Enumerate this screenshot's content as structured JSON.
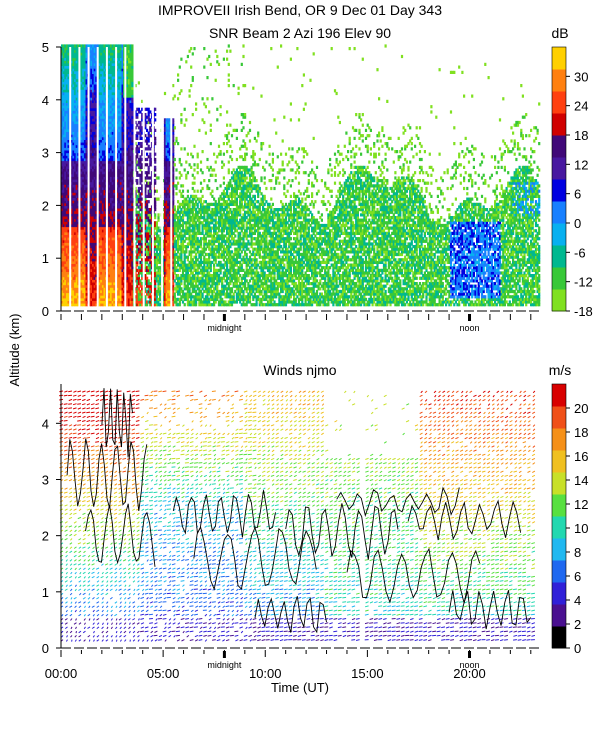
{
  "figure": {
    "title_line1": "IMPROVEII  Irish Bend, OR   9 Dec 01 Day 343",
    "title_line2": "SNR Beam 2 Azi 196 Elev 90",
    "shared_ylabel": "Altitude (km)",
    "shared_xlabel": "Time (UT)",
    "markers": [
      {
        "label": "midnight",
        "hour": 8.0
      },
      {
        "label": "noon",
        "hour": 20.0
      }
    ]
  },
  "chart_data": [
    {
      "id": "snr",
      "type": "heatmap",
      "title": "SNR Beam 2 Azi 196 Elev 90",
      "variable": "SNR",
      "ylabel": "Altitude (km)",
      "xlim": [
        0,
        23.5
      ],
      "ylim": [
        0,
        5
      ],
      "yticks": [
        "0",
        "1",
        "2",
        "3",
        "4",
        "5"
      ],
      "colorbar": {
        "unit": "dB",
        "range": [
          -18,
          36
        ],
        "ticks": [
          "-18",
          "-12",
          "-6",
          "0",
          "6",
          "12",
          "18",
          "24",
          "30"
        ],
        "colors": [
          "#80e020",
          "#38c838",
          "#00b890",
          "#08b0f0",
          "#1880ff",
          "#0000e0",
          "#4818a0",
          "#400878",
          "#d00000",
          "#ff4010",
          "#ff8010",
          "#ffd000"
        ]
      },
      "description_values": {
        "strong_echo_region": {
          "x_range": [
            0,
            5.5
          ],
          "alt_range": [
            0.1,
            5.0
          ],
          "max_db": 30
        },
        "moderate_layer_top_km": 2.5
      }
    },
    {
      "id": "winds",
      "type": "scatter",
      "title": "Winds njmo",
      "variable": "Wind speed barbs",
      "ylabel": "Altitude (km)",
      "xlabel": "Time (UT)",
      "xlim": [
        0,
        23.5
      ],
      "ylim": [
        0,
        4.7
      ],
      "xticks": [
        "00:00",
        "05:00",
        "10:00",
        "15:00",
        "20:00"
      ],
      "yticks": [
        "0",
        "1",
        "2",
        "3",
        "4"
      ],
      "colorbar": {
        "unit": "m/s",
        "range": [
          0,
          22
        ],
        "ticks": [
          "0",
          "2",
          "4",
          "6",
          "8",
          "10",
          "12",
          "14",
          "16",
          "18",
          "20"
        ],
        "colors": [
          "#000000",
          "#4a1090",
          "#3020d8",
          "#1f68f0",
          "#20b8f0",
          "#22d8b0",
          "#58e040",
          "#c8e028",
          "#f0c020",
          "#f59018",
          "#f05018",
          "#d80000"
        ]
      }
    }
  ]
}
